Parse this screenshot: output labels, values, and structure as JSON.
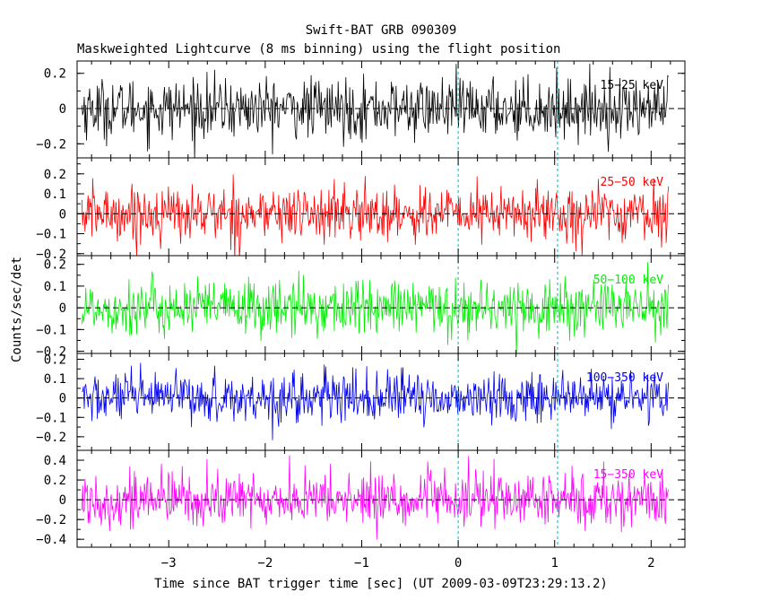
{
  "chart_data": {
    "type": "line",
    "title": "Swift-BAT GRB 090309",
    "subtitle": "Maskweighted Lightcurve (8 ms binning) using the flight position",
    "xlabel": "Time since BAT trigger time [sec] (UT 2009-03-09T23:29:13.2)",
    "ylabel": "Counts/sec/det",
    "xlim": [
      -3.95,
      2.35
    ],
    "x_ticks": [
      -3,
      -2,
      -1,
      0,
      1,
      2
    ],
    "x_tick_labels": [
      "−3",
      "−2",
      "−1",
      "0",
      "1",
      "2"
    ],
    "x_range": [
      -3.9,
      2.18
    ],
    "bin_width_s": 0.008,
    "vertical_markers": [
      0,
      1.03
    ],
    "panels": [
      {
        "name": "15-25 keV",
        "label": "15−25 keV",
        "color": "#000000",
        "ylim": [
          -0.28,
          0.27
        ],
        "y_ticks": [
          -0.2,
          0,
          0.2
        ],
        "y_tick_labels": [
          "−0.2",
          "0",
          "0.2"
        ],
        "noise_sigma": 0.085
      },
      {
        "name": "25-50 keV",
        "label": "25−50 keV",
        "color": "#ff0000",
        "ylim": [
          -0.21,
          0.28
        ],
        "y_ticks": [
          -0.2,
          -0.1,
          0,
          0.1,
          0.2
        ],
        "y_tick_labels": [
          "−0.2",
          "−0.1",
          "0",
          "0.1",
          "0.2"
        ],
        "noise_sigma": 0.07
      },
      {
        "name": "50-100 keV",
        "label": "50−100 keV",
        "color": "#00ee00",
        "ylim": [
          -0.21,
          0.24
        ],
        "y_ticks": [
          -0.2,
          -0.1,
          0,
          0.1,
          0.2
        ],
        "y_tick_labels": [
          "−0.2",
          "−0.1",
          "0",
          "0.1",
          "0.2"
        ],
        "noise_sigma": 0.065
      },
      {
        "name": "100-350 keV",
        "label": "100−350 keV",
        "color": "#0000ee",
        "ylim": [
          -0.27,
          0.23
        ],
        "y_ticks": [
          -0.2,
          -0.1,
          0,
          0.1,
          0.2
        ],
        "y_tick_labels": [
          "−0.2",
          "−0.1",
          "0",
          "0.1",
          "0.2"
        ],
        "noise_sigma": 0.065
      },
      {
        "name": "15-350 keV",
        "label": "15−350 keV",
        "color": "#ff00ff",
        "ylim": [
          -0.48,
          0.5
        ],
        "y_ticks": [
          -0.4,
          -0.2,
          0,
          0.2,
          0.4
        ],
        "y_tick_labels": [
          "−0.4",
          "−0.2",
          "0",
          "0.2",
          "0.4"
        ],
        "noise_sigma": 0.14
      }
    ]
  }
}
